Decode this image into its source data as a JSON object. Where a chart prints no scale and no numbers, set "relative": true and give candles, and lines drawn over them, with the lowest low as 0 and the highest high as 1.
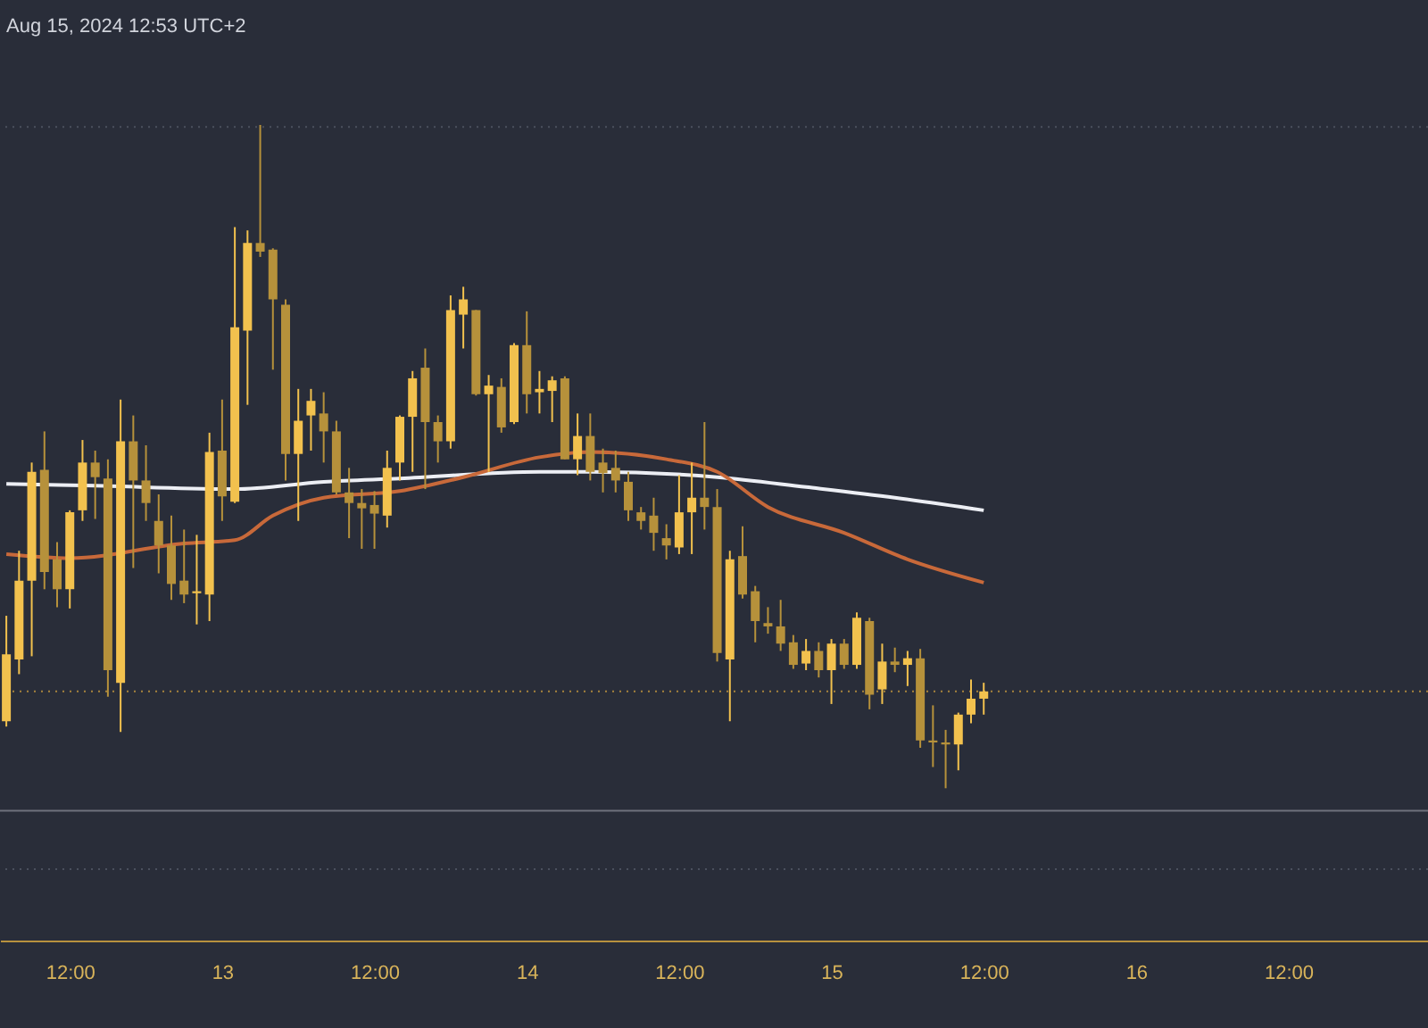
{
  "chart_data": {
    "type": "candlestick",
    "title": "Aug 15, 2024 12:53 UTC+2",
    "relative": true,
    "tick_labels": "x",
    "colors": [
      "#f2c14e",
      "#f2c14e",
      "#f2c14e",
      "#b6913b",
      "#b6913b",
      "#f2c14e",
      "#f2c14e",
      "#b6913b",
      "#b6913b",
      "#f2c14e",
      "#b6913b",
      "#b6913b",
      "#b6913b",
      "#b6913b",
      "#b6913b",
      "#f2c14e",
      "#f2c14e",
      "#b6913b",
      "#f2c14e",
      "#f2c14e",
      "#b6913b",
      "#b6913b",
      "#b6913b",
      "#f2c14e",
      "#f2c14e",
      "#b6913b",
      "#b6913b",
      "#b6913b",
      "#b6913b",
      "#b6913b",
      "#f2c14e",
      "#f2c14e",
      "#f2c14e",
      "#b6913b",
      "#b6913b",
      "#f2c14e",
      "#f2c14e",
      "#b6913b",
      "#f2c14e",
      "#b6913b",
      "#f2c14e",
      "#b6913b",
      "#f2c14e",
      "#f2c14e",
      "#b6913b",
      "#f2c14e",
      "#b6913b",
      "#b6913b",
      "#b6913b",
      "#b6913b",
      "#b6913b",
      "#b6913b",
      "#b6913b",
      "#f2c14e",
      "#f2c14e",
      "#b6913b",
      "#b6913b",
      "#f2c14e",
      "#b6913b",
      "#b6913b",
      "#b6913b",
      "#b6913b",
      "#b6913b",
      "#f2c14e",
      "#b6913b",
      "#f2c14e",
      "#b6913b",
      "#f2c14e",
      "#b6913b",
      "#f2c14e",
      "#b6913b",
      "#f2c14e",
      "#b6913b",
      "#b6913b",
      "#b6913b",
      "#f2c14e",
      "#f2c14e",
      "#f2c14e"
    ],
    "xlim": [
      "2024-08-12T06:30",
      "2024-08-16T23:00"
    ],
    "xticks": [
      {
        "value": "2024-08-12T12:00",
        "label": "12:00"
      },
      {
        "value": "2024-08-13T00:00",
        "label": "13"
      },
      {
        "value": "2024-08-13T12:00",
        "label": "12:00"
      },
      {
        "value": "2024-08-14T00:00",
        "label": "14"
      },
      {
        "value": "2024-08-14T12:00",
        "label": "12:00"
      },
      {
        "value": "2024-08-15T00:00",
        "label": "15"
      },
      {
        "value": "2024-08-15T12:00",
        "label": "12:00"
      },
      {
        "value": "2024-08-16T00:00",
        "label": "16"
      },
      {
        "value": "2024-08-16T12:00",
        "label": "12:00"
      }
    ],
    "x": [
      "2024-08-12T07:00",
      "2024-08-12T08:00",
      "2024-08-12T09:00",
      "2024-08-12T10:00",
      "2024-08-12T11:00",
      "2024-08-12T12:00",
      "2024-08-12T13:00",
      "2024-08-12T14:00",
      "2024-08-12T15:00",
      "2024-08-12T16:00",
      "2024-08-12T17:00",
      "2024-08-12T18:00",
      "2024-08-12T19:00",
      "2024-08-12T20:00",
      "2024-08-12T21:00",
      "2024-08-12T22:00",
      "2024-08-12T23:00",
      "2024-08-13T00:00",
      "2024-08-13T01:00",
      "2024-08-13T02:00",
      "2024-08-13T03:00",
      "2024-08-13T04:00",
      "2024-08-13T05:00",
      "2024-08-13T06:00",
      "2024-08-13T07:00",
      "2024-08-13T08:00",
      "2024-08-13T09:00",
      "2024-08-13T10:00",
      "2024-08-13T11:00",
      "2024-08-13T12:00",
      "2024-08-13T13:00",
      "2024-08-13T14:00",
      "2024-08-13T15:00",
      "2024-08-13T16:00",
      "2024-08-13T17:00",
      "2024-08-13T18:00",
      "2024-08-13T19:00",
      "2024-08-13T20:00",
      "2024-08-13T21:00",
      "2024-08-13T22:00",
      "2024-08-13T23:00",
      "2024-08-14T00:00",
      "2024-08-14T01:00",
      "2024-08-14T02:00",
      "2024-08-14T03:00",
      "2024-08-14T04:00",
      "2024-08-14T05:00",
      "2024-08-14T06:00",
      "2024-08-14T07:00",
      "2024-08-14T08:00",
      "2024-08-14T09:00",
      "2024-08-14T10:00",
      "2024-08-14T11:00",
      "2024-08-14T12:00",
      "2024-08-14T13:00",
      "2024-08-14T14:00",
      "2024-08-14T15:00",
      "2024-08-14T16:00",
      "2024-08-14T17:00",
      "2024-08-14T18:00",
      "2024-08-14T19:00",
      "2024-08-14T20:00",
      "2024-08-14T21:00",
      "2024-08-14T22:00",
      "2024-08-14T23:00",
      "2024-08-15T00:00",
      "2024-08-15T01:00",
      "2024-08-15T02:00",
      "2024-08-15T03:00",
      "2024-08-15T04:00",
      "2024-08-15T05:00",
      "2024-08-15T06:00",
      "2024-08-15T07:00",
      "2024-08-15T08:00",
      "2024-08-15T09:00",
      "2024-08-15T10:00",
      "2024-08-15T11:00",
      "2024-08-15T12:00"
    ],
    "ohlc": [
      [
        0.101,
        0.26,
        0.093,
        0.202
      ],
      [
        0.194,
        0.358,
        0.172,
        0.313
      ],
      [
        0.313,
        0.491,
        0.199,
        0.477
      ],
      [
        0.48,
        0.538,
        0.3,
        0.326
      ],
      [
        0.345,
        0.371,
        0.273,
        0.3
      ],
      [
        0.3,
        0.419,
        0.271,
        0.416
      ],
      [
        0.419,
        0.525,
        0.403,
        0.491
      ],
      [
        0.491,
        0.509,
        0.406,
        0.469
      ],
      [
        0.467,
        0.496,
        0.138,
        0.178
      ],
      [
        0.159,
        0.586,
        0.085,
        0.523
      ],
      [
        0.523,
        0.562,
        0.332,
        0.464
      ],
      [
        0.464,
        0.517,
        0.403,
        0.43
      ],
      [
        0.403,
        0.443,
        0.324,
        0.366
      ],
      [
        0.366,
        0.411,
        0.284,
        0.308
      ],
      [
        0.313,
        0.39,
        0.279,
        0.292
      ],
      [
        0.294,
        0.382,
        0.247,
        0.297
      ],
      [
        0.292,
        0.536,
        0.252,
        0.507
      ],
      [
        0.509,
        0.586,
        0.403,
        0.44
      ],
      [
        0.432,
        0.846,
        0.43,
        0.695
      ],
      [
        0.69,
        0.841,
        0.578,
        0.822
      ],
      [
        0.822,
        1.0,
        0.801,
        0.809
      ],
      [
        0.812,
        0.814,
        0.631,
        0.737
      ],
      [
        0.729,
        0.737,
        0.464,
        0.504
      ],
      [
        0.504,
        0.602,
        0.403,
        0.554
      ],
      [
        0.562,
        0.602,
        0.509,
        0.584
      ],
      [
        0.565,
        0.597,
        0.491,
        0.538
      ],
      [
        0.538,
        0.554,
        0.443,
        0.446
      ],
      [
        0.446,
        0.483,
        0.377,
        0.43
      ],
      [
        0.43,
        0.451,
        0.361,
        0.422
      ],
      [
        0.427,
        0.448,
        0.361,
        0.414
      ],
      [
        0.411,
        0.509,
        0.393,
        0.483
      ],
      [
        0.491,
        0.562,
        0.464,
        0.56
      ],
      [
        0.56,
        0.629,
        0.477,
        0.618
      ],
      [
        0.634,
        0.663,
        0.451,
        0.552
      ],
      [
        0.552,
        0.562,
        0.491,
        0.523
      ],
      [
        0.523,
        0.743,
        0.512,
        0.721
      ],
      [
        0.714,
        0.756,
        0.663,
        0.737
      ],
      [
        0.721,
        0.721,
        0.592,
        0.594
      ],
      [
        0.594,
        0.623,
        0.477,
        0.607
      ],
      [
        0.605,
        0.618,
        0.536,
        0.544
      ],
      [
        0.552,
        0.671,
        0.549,
        0.668
      ],
      [
        0.668,
        0.719,
        0.565,
        0.594
      ],
      [
        0.597,
        0.629,
        0.565,
        0.602
      ],
      [
        0.599,
        0.621,
        0.552,
        0.615
      ],
      [
        0.618,
        0.621,
        0.496,
        0.496
      ],
      [
        0.496,
        0.565,
        0.472,
        0.531
      ],
      [
        0.531,
        0.565,
        0.464,
        0.477
      ],
      [
        0.491,
        0.512,
        0.446,
        0.475
      ],
      [
        0.483,
        0.509,
        0.446,
        0.464
      ],
      [
        0.462,
        0.477,
        0.403,
        0.419
      ],
      [
        0.416,
        0.424,
        0.39,
        0.403
      ],
      [
        0.411,
        0.438,
        0.358,
        0.385
      ],
      [
        0.377,
        0.398,
        0.345,
        0.366
      ],
      [
        0.363,
        0.472,
        0.353,
        0.416
      ],
      [
        0.416,
        0.491,
        0.353,
        0.438
      ],
      [
        0.438,
        0.552,
        0.39,
        0.424
      ],
      [
        0.424,
        0.451,
        0.191,
        0.204
      ],
      [
        0.194,
        0.358,
        0.101,
        0.345
      ],
      [
        0.35,
        0.395,
        0.286,
        0.292
      ],
      [
        0.297,
        0.305,
        0.22,
        0.252
      ],
      [
        0.249,
        0.273,
        0.233,
        0.244
      ],
      [
        0.244,
        0.284,
        0.207,
        0.218
      ],
      [
        0.22,
        0.231,
        0.18,
        0.186
      ],
      [
        0.188,
        0.225,
        0.178,
        0.207
      ],
      [
        0.207,
        0.22,
        0.167,
        0.178
      ],
      [
        0.178,
        0.225,
        0.127,
        0.218
      ],
      [
        0.218,
        0.225,
        0.18,
        0.186
      ],
      [
        0.186,
        0.265,
        0.18,
        0.257
      ],
      [
        0.252,
        0.257,
        0.119,
        0.141
      ],
      [
        0.149,
        0.218,
        0.127,
        0.191
      ],
      [
        0.191,
        0.212,
        0.175,
        0.186
      ],
      [
        0.186,
        0.207,
        0.154,
        0.196
      ],
      [
        0.196,
        0.21,
        0.061,
        0.072
      ],
      [
        0.072,
        0.125,
        0.032,
        0.069
      ],
      [
        0.069,
        0.088,
        0.0,
        0.066
      ],
      [
        0.066,
        0.114,
        0.027,
        0.111
      ],
      [
        0.111,
        0.164,
        0.098,
        0.135
      ],
      [
        0.135,
        0.159,
        0.111,
        0.146
      ]
    ],
    "series": [
      {
        "type": "line",
        "color": "#eceef4",
        "x": [
          "2024-08-12T07:00",
          "2024-08-12T14:00",
          "2024-08-13T01:00",
          "2024-08-13T08:00",
          "2024-08-13T14:00",
          "2024-08-14T01:00",
          "2024-08-14T05:00",
          "2024-08-14T15:00",
          "2024-08-14T22:00",
          "2024-08-15T05:00",
          "2024-08-15T12:00"
        ],
        "values": [
          0.459,
          0.456,
          0.451,
          0.462,
          0.467,
          0.477,
          0.477,
          0.469,
          0.454,
          0.438,
          0.419
        ]
      },
      {
        "type": "line",
        "color": "#c8693a",
        "x": [
          "2024-08-12T07:00",
          "2024-08-12T12:00",
          "2024-08-12T21:00",
          "2024-08-13T01:00",
          "2024-08-13T04:00",
          "2024-08-13T08:00",
          "2024-08-13T14:00",
          "2024-08-13T19:00",
          "2024-08-14T01:00",
          "2024-08-14T05:00",
          "2024-08-14T11:00",
          "2024-08-14T15:00",
          "2024-08-14T19:00",
          "2024-08-15T01:00",
          "2024-08-15T06:00",
          "2024-08-15T12:00"
        ],
        "values": [
          0.353,
          0.347,
          0.369,
          0.374,
          0.411,
          0.438,
          0.448,
          0.469,
          0.499,
          0.507,
          0.496,
          0.477,
          0.424,
          0.385,
          0.345,
          0.31
        ]
      }
    ],
    "ref_lines": [
      {
        "axis": "y",
        "value": 0.997,
        "color": "#4b505e",
        "line_style": "dotted"
      },
      {
        "axis": "y",
        "value": 0.146,
        "color": "#a8843c",
        "line_style": "dotted"
      },
      {
        "axis": "y",
        "value": -0.034,
        "color": "#6e717c",
        "line_style": "solid"
      },
      {
        "axis": "y",
        "value": -0.122,
        "color": "#4b505e",
        "line_style": "dotted"
      }
    ]
  }
}
